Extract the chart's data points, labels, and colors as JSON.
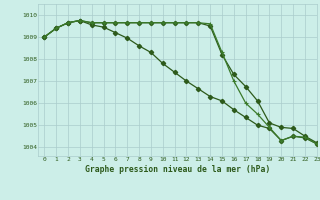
{
  "title": "Graphe pression niveau de la mer (hPa)",
  "background_color": "#cceee8",
  "grid_color": "#aacccc",
  "line_color_dark": "#2d5a1b",
  "line_color_light": "#3a7a2a",
  "xlim": [
    -0.5,
    23
  ],
  "ylim": [
    1003.6,
    1010.5
  ],
  "yticks": [
    1004,
    1005,
    1006,
    1007,
    1008,
    1009,
    1010
  ],
  "xticks": [
    0,
    1,
    2,
    3,
    4,
    5,
    6,
    7,
    8,
    9,
    10,
    11,
    12,
    13,
    14,
    15,
    16,
    17,
    18,
    19,
    20,
    21,
    22,
    23
  ],
  "series1_x": [
    0,
    1,
    2,
    3,
    4,
    5,
    6,
    7,
    8,
    9,
    10,
    11,
    12,
    13,
    14,
    15,
    16,
    17,
    18,
    19,
    20,
    21,
    22,
    23
  ],
  "series1": [
    1009.0,
    1009.4,
    1009.65,
    1009.75,
    1009.65,
    1009.65,
    1009.65,
    1009.65,
    1009.65,
    1009.65,
    1009.65,
    1009.65,
    1009.65,
    1009.65,
    1009.6,
    1008.3,
    1007.0,
    1006.0,
    1005.5,
    1004.9,
    1004.3,
    1004.5,
    1004.45,
    1004.15
  ],
  "series2_x": [
    0,
    1,
    2,
    3,
    4,
    5,
    6,
    7,
    8,
    9,
    10,
    11,
    12,
    13,
    14,
    15,
    16,
    17,
    18,
    19,
    20,
    21,
    22,
    23
  ],
  "series2": [
    1009.0,
    1009.4,
    1009.65,
    1009.75,
    1009.55,
    1009.45,
    1009.2,
    1008.95,
    1008.6,
    1008.3,
    1007.8,
    1007.4,
    1007.0,
    1006.65,
    1006.3,
    1006.1,
    1005.7,
    1005.35,
    1005.0,
    1004.85,
    1004.3,
    1004.5,
    1004.42,
    1004.15
  ],
  "series3_x": [
    0,
    1,
    2,
    3,
    4,
    5,
    6,
    7,
    8,
    9,
    10,
    11,
    12,
    13,
    14,
    15,
    16,
    17,
    18,
    19,
    20,
    21,
    22,
    23
  ],
  "series3": [
    1009.0,
    1009.4,
    1009.65,
    1009.75,
    1009.65,
    1009.65,
    1009.65,
    1009.65,
    1009.65,
    1009.65,
    1009.65,
    1009.65,
    1009.65,
    1009.65,
    1009.5,
    1008.2,
    1007.3,
    1006.75,
    1006.1,
    1005.1,
    1004.9,
    1004.85,
    1004.5,
    1004.2
  ]
}
